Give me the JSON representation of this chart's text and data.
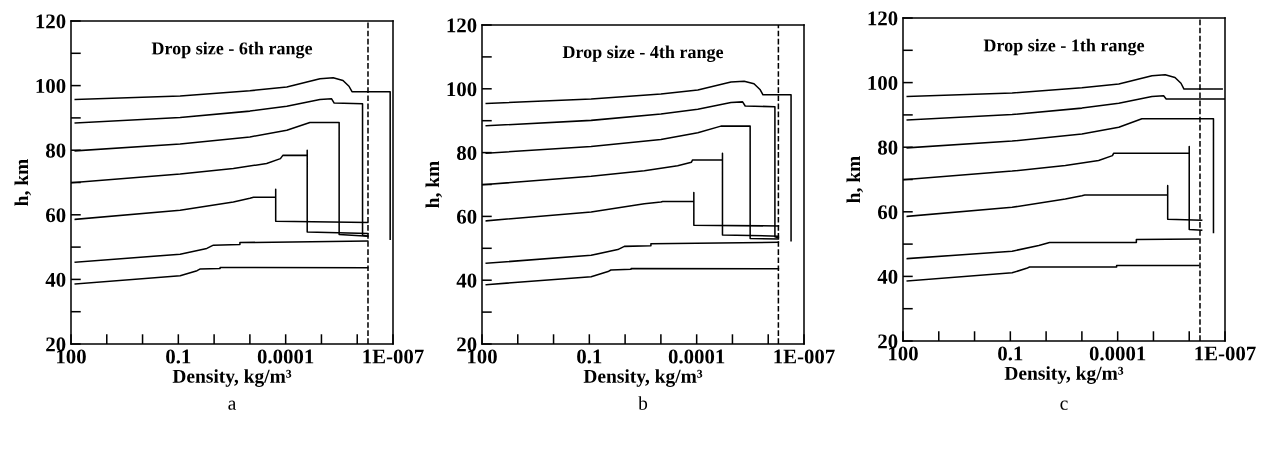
{
  "chart_data": [
    {
      "type": "line",
      "title": "Drop size - 6th range",
      "xlabel": "Density, kg/m³",
      "ylabel": "h, km",
      "log": "x",
      "grid": false,
      "legend": false,
      "xlim": [
        100,
        1e-07
      ],
      "xticks": [
        100,
        {
          "value": 10,
          "label": null
        },
        {
          "value": 1,
          "label": null
        },
        0.1,
        {
          "value": 0.01,
          "label": null
        },
        {
          "value": 0.001,
          "label": null
        },
        0.0001,
        {
          "value": 1e-05,
          "label": null
        },
        {
          "value": 1e-06,
          "label": null
        },
        {
          "value": 1e-07,
          "label": "1E-007"
        }
      ],
      "ylim": [
        20,
        120
      ],
      "yticks": [
        20,
        {
          "value": 30,
          "label": null
        },
        40,
        {
          "value": 50,
          "label": null
        },
        60,
        {
          "value": 70,
          "label": null
        },
        80,
        {
          "value": 90,
          "label": null
        },
        100,
        {
          "value": 110,
          "label": null
        },
        120
      ],
      "ref_lines": [
        {
          "axis": "x",
          "value": 5e-07,
          "color": "#000000",
          "line_style": "dashed"
        }
      ],
      "annotations": [
        "a"
      ],
      "series": [
        {
          "color": "#000000",
          "x": [
            76,
            0.089,
            0.001,
            9.3e-05,
            1.1e-05,
            4.7e-06,
            2.5e-06,
            1.7e-06,
            1.4e-06,
            1.2e-07,
            1.2e-07
          ],
          "values": [
            95.7,
            96.8,
            98.4,
            99.6,
            102.1,
            102.4,
            101.6,
            99.8,
            98.1,
            98.1,
            52.4
          ]
        },
        {
          "color": "#000000",
          "x": [
            76,
            0.089,
            0.001,
            9.3e-05,
            1.1e-05,
            5.2e-06,
            4.4e-06,
            7.1e-07,
            7.1e-07,
            5.1e-07
          ],
          "values": [
            88.4,
            90.1,
            92.1,
            93.6,
            95.7,
            95.9,
            94.6,
            94.4,
            53.7,
            53.4
          ]
        },
        {
          "color": "#000000",
          "x": [
            76,
            0.089,
            0.001,
            9.3e-05,
            2.1e-05,
            3.2e-06,
            3.2e-06,
            5.1e-07
          ],
          "values": [
            79.8,
            81.9,
            84.1,
            86.2,
            88.6,
            88.6,
            53.9,
            53.4
          ]
        },
        {
          "color": "#000000",
          "x": [
            100,
            0.089,
            0.0029,
            0.00034,
            0.00014,
            0.00012,
            2.5e-05,
            2.5e-05,
            2.5e-05,
            5.1e-07
          ],
          "values": [
            69.9,
            72.6,
            74.3,
            75.9,
            77.4,
            78.4,
            78.4,
            80.0,
            54.7,
            54.2
          ]
        },
        {
          "color": "#000000",
          "x": [
            76,
            0.089,
            0.0029,
            0.001,
            0.00079,
            0.00019,
            0.00019,
            0.00019,
            5.1e-07
          ],
          "values": [
            58.6,
            61.4,
            64.0,
            65.1,
            65.4,
            65.4,
            67.9,
            58.0,
            57.6
          ]
        },
        {
          "color": "#000000",
          "x": [
            76,
            0.089,
            0.016,
            0.0105,
            0.0019,
            0.0019,
            5.1e-07
          ],
          "values": [
            45.3,
            47.8,
            49.6,
            50.6,
            50.8,
            51.4,
            51.9
          ]
        },
        {
          "color": "#000000",
          "x": [
            76,
            0.089,
            0.03,
            0.025,
            0.0068,
            0.0068,
            5.1e-07
          ],
          "values": [
            38.6,
            41.1,
            42.7,
            43.2,
            43.4,
            43.7,
            43.6
          ]
        }
      ]
    },
    {
      "type": "line",
      "title": "Drop size - 4th range",
      "xlabel": "Density, kg/m³",
      "ylabel": "h, km",
      "log": "x",
      "grid": false,
      "legend": false,
      "xlim": [
        100,
        1e-07
      ],
      "xticks": [
        100,
        {
          "value": 10,
          "label": null
        },
        {
          "value": 1,
          "label": null
        },
        0.1,
        {
          "value": 0.01,
          "label": null
        },
        {
          "value": 0.001,
          "label": null
        },
        0.0001,
        {
          "value": 1e-05,
          "label": null
        },
        {
          "value": 1e-06,
          "label": null
        },
        {
          "value": 1e-07,
          "label": "1E-007"
        }
      ],
      "ylim": [
        20,
        120
      ],
      "yticks": [
        20,
        {
          "value": 30,
          "label": null
        },
        40,
        {
          "value": 50,
          "label": null
        },
        60,
        {
          "value": 70,
          "label": null
        },
        80,
        {
          "value": 90,
          "label": null
        },
        100,
        {
          "value": 110,
          "label": null
        },
        120
      ],
      "ref_lines": [
        {
          "axis": "x",
          "value": 5.2e-07,
          "color": "#000000",
          "line_style": "dashed"
        }
      ],
      "annotations": [
        "b"
      ],
      "series": [
        {
          "color": "#000000",
          "x": [
            76,
            0.089,
            0.001,
            9.3e-05,
            1.1e-05,
            4.7e-06,
            2.5e-06,
            1.7e-06,
            1.4e-06,
            2.3e-07,
            2.3e-07
          ],
          "values": [
            95.4,
            96.8,
            98.4,
            99.6,
            102.1,
            102.4,
            101.6,
            99.8,
            98.1,
            98.1,
            52.4
          ]
        },
        {
          "color": "#000000",
          "x": [
            76,
            0.089,
            0.001,
            9.3e-05,
            1.1e-05,
            5.2e-06,
            4.4e-06,
            6.5e-07,
            6.5e-07,
            5.2e-07
          ],
          "values": [
            88.4,
            90.1,
            92.1,
            93.6,
            95.7,
            95.9,
            94.6,
            94.4,
            53.6,
            53.3
          ]
        },
        {
          "color": "#000000",
          "x": [
            76,
            0.089,
            0.001,
            9.3e-05,
            2.1e-05,
            3.2e-06,
            3.2e-06,
            5.2e-07
          ],
          "values": [
            79.8,
            81.9,
            84.1,
            86.2,
            88.3,
            88.3,
            53.1,
            52.9
          ]
        },
        {
          "color": "#000000",
          "x": [
            100,
            0.089,
            0.0029,
            0.00034,
            0.00014,
            0.00013,
            1.9e-05,
            1.9e-05,
            1.9e-05,
            5.2e-07
          ],
          "values": [
            69.9,
            72.6,
            74.3,
            75.9,
            77.0,
            77.7,
            77.7,
            79.8,
            54.2,
            53.8
          ]
        },
        {
          "color": "#000000",
          "x": [
            76,
            0.089,
            0.0029,
            0.001,
            0.00089,
            0.00012,
            0.00012,
            0.00012,
            5.2e-07
          ],
          "values": [
            58.6,
            61.4,
            64.0,
            64.5,
            64.7,
            64.7,
            67.5,
            57.2,
            57.0
          ]
        },
        {
          "color": "#000000",
          "x": [
            76,
            0.089,
            0.016,
            0.0105,
            0.0019,
            0.0019,
            5.2e-07
          ],
          "values": [
            45.3,
            47.8,
            49.6,
            50.6,
            50.8,
            51.4,
            51.9
          ]
        },
        {
          "color": "#000000",
          "x": [
            76,
            0.089,
            0.03,
            0.025,
            0.0068,
            0.0068,
            5.2e-07
          ],
          "values": [
            38.6,
            41.1,
            42.7,
            43.2,
            43.4,
            43.7,
            43.6
          ]
        }
      ]
    },
    {
      "type": "line",
      "title": "Drop size - 1th range",
      "xlabel": "Density, kg/m³",
      "ylabel": "h, km",
      "log": "x",
      "grid": false,
      "legend": false,
      "xlim": [
        100,
        1e-07
      ],
      "xticks": [
        100,
        {
          "value": 10,
          "label": null
        },
        {
          "value": 1,
          "label": null
        },
        0.1,
        {
          "value": 0.01,
          "label": null
        },
        {
          "value": 0.001,
          "label": null
        },
        0.0001,
        {
          "value": 1e-05,
          "label": null
        },
        {
          "value": 1e-06,
          "label": null
        },
        {
          "value": 1e-07,
          "label": "1E-007"
        }
      ],
      "ylim": [
        20,
        120
      ],
      "yticks": [
        20,
        {
          "value": 30,
          "label": null
        },
        40,
        {
          "value": 50,
          "label": null
        },
        60,
        {
          "value": 70,
          "label": null
        },
        80,
        {
          "value": 90,
          "label": null
        },
        100,
        {
          "value": 110,
          "label": null
        },
        120
      ],
      "ref_lines": [
        {
          "axis": "x",
          "value": 5e-07,
          "color": "#000000",
          "line_style": "dashed"
        }
      ],
      "annotations": [
        "c"
      ],
      "series": [
        {
          "color": "#000000",
          "x": [
            76,
            0.089,
            0.001,
            9.3e-05,
            1.1e-05,
            4.7e-06,
            2.5e-06,
            1.7e-06,
            1.4e-06,
            1.2e-07
          ],
          "values": [
            95.7,
            96.8,
            98.4,
            99.6,
            102.1,
            102.4,
            101.6,
            99.8,
            98.0,
            98.0
          ]
        },
        {
          "color": "#000000",
          "x": [
            76,
            0.089,
            0.001,
            9.3e-05,
            1.1e-05,
            5.2e-06,
            4.4e-06,
            1e-07
          ],
          "values": [
            88.4,
            90.1,
            92.1,
            93.6,
            95.7,
            95.9,
            94.9,
            94.9
          ]
        },
        {
          "color": "#000000",
          "x": [
            76,
            0.089,
            0.001,
            9.3e-05,
            2.1e-05,
            2.1e-07,
            2.1e-07
          ],
          "values": [
            79.8,
            81.9,
            84.1,
            86.2,
            88.8,
            88.8,
            53.6
          ]
        },
        {
          "color": "#000000",
          "x": [
            100,
            0.089,
            0.0029,
            0.00034,
            0.00014,
            0.00013,
            1e-06,
            1e-06,
            1e-06,
            4.5e-07
          ],
          "values": [
            69.9,
            72.6,
            74.3,
            75.9,
            77.4,
            78.1,
            78.1,
            80.2,
            54.5,
            54.3
          ]
        },
        {
          "color": "#000000",
          "x": [
            76,
            0.089,
            0.0029,
            0.001,
            0.00083,
            4e-06,
            4e-06,
            4e-06,
            4.5e-07
          ],
          "values": [
            58.6,
            61.4,
            64.0,
            65.0,
            65.2,
            65.2,
            68.1,
            57.7,
            57.4
          ]
        },
        {
          "color": "#000000",
          "x": [
            76,
            0.089,
            0.016,
            0.008,
            3e-05,
            3e-05,
            5.5e-07
          ],
          "values": [
            45.5,
            47.8,
            49.6,
            50.5,
            50.5,
            51.4,
            51.6
          ]
        },
        {
          "color": "#000000",
          "x": [
            76,
            0.089,
            0.035,
            0.029,
            0.000107,
            0.000107,
            5.5e-07
          ],
          "values": [
            38.6,
            41.1,
            42.5,
            42.9,
            42.9,
            43.4,
            43.4
          ]
        }
      ]
    }
  ]
}
